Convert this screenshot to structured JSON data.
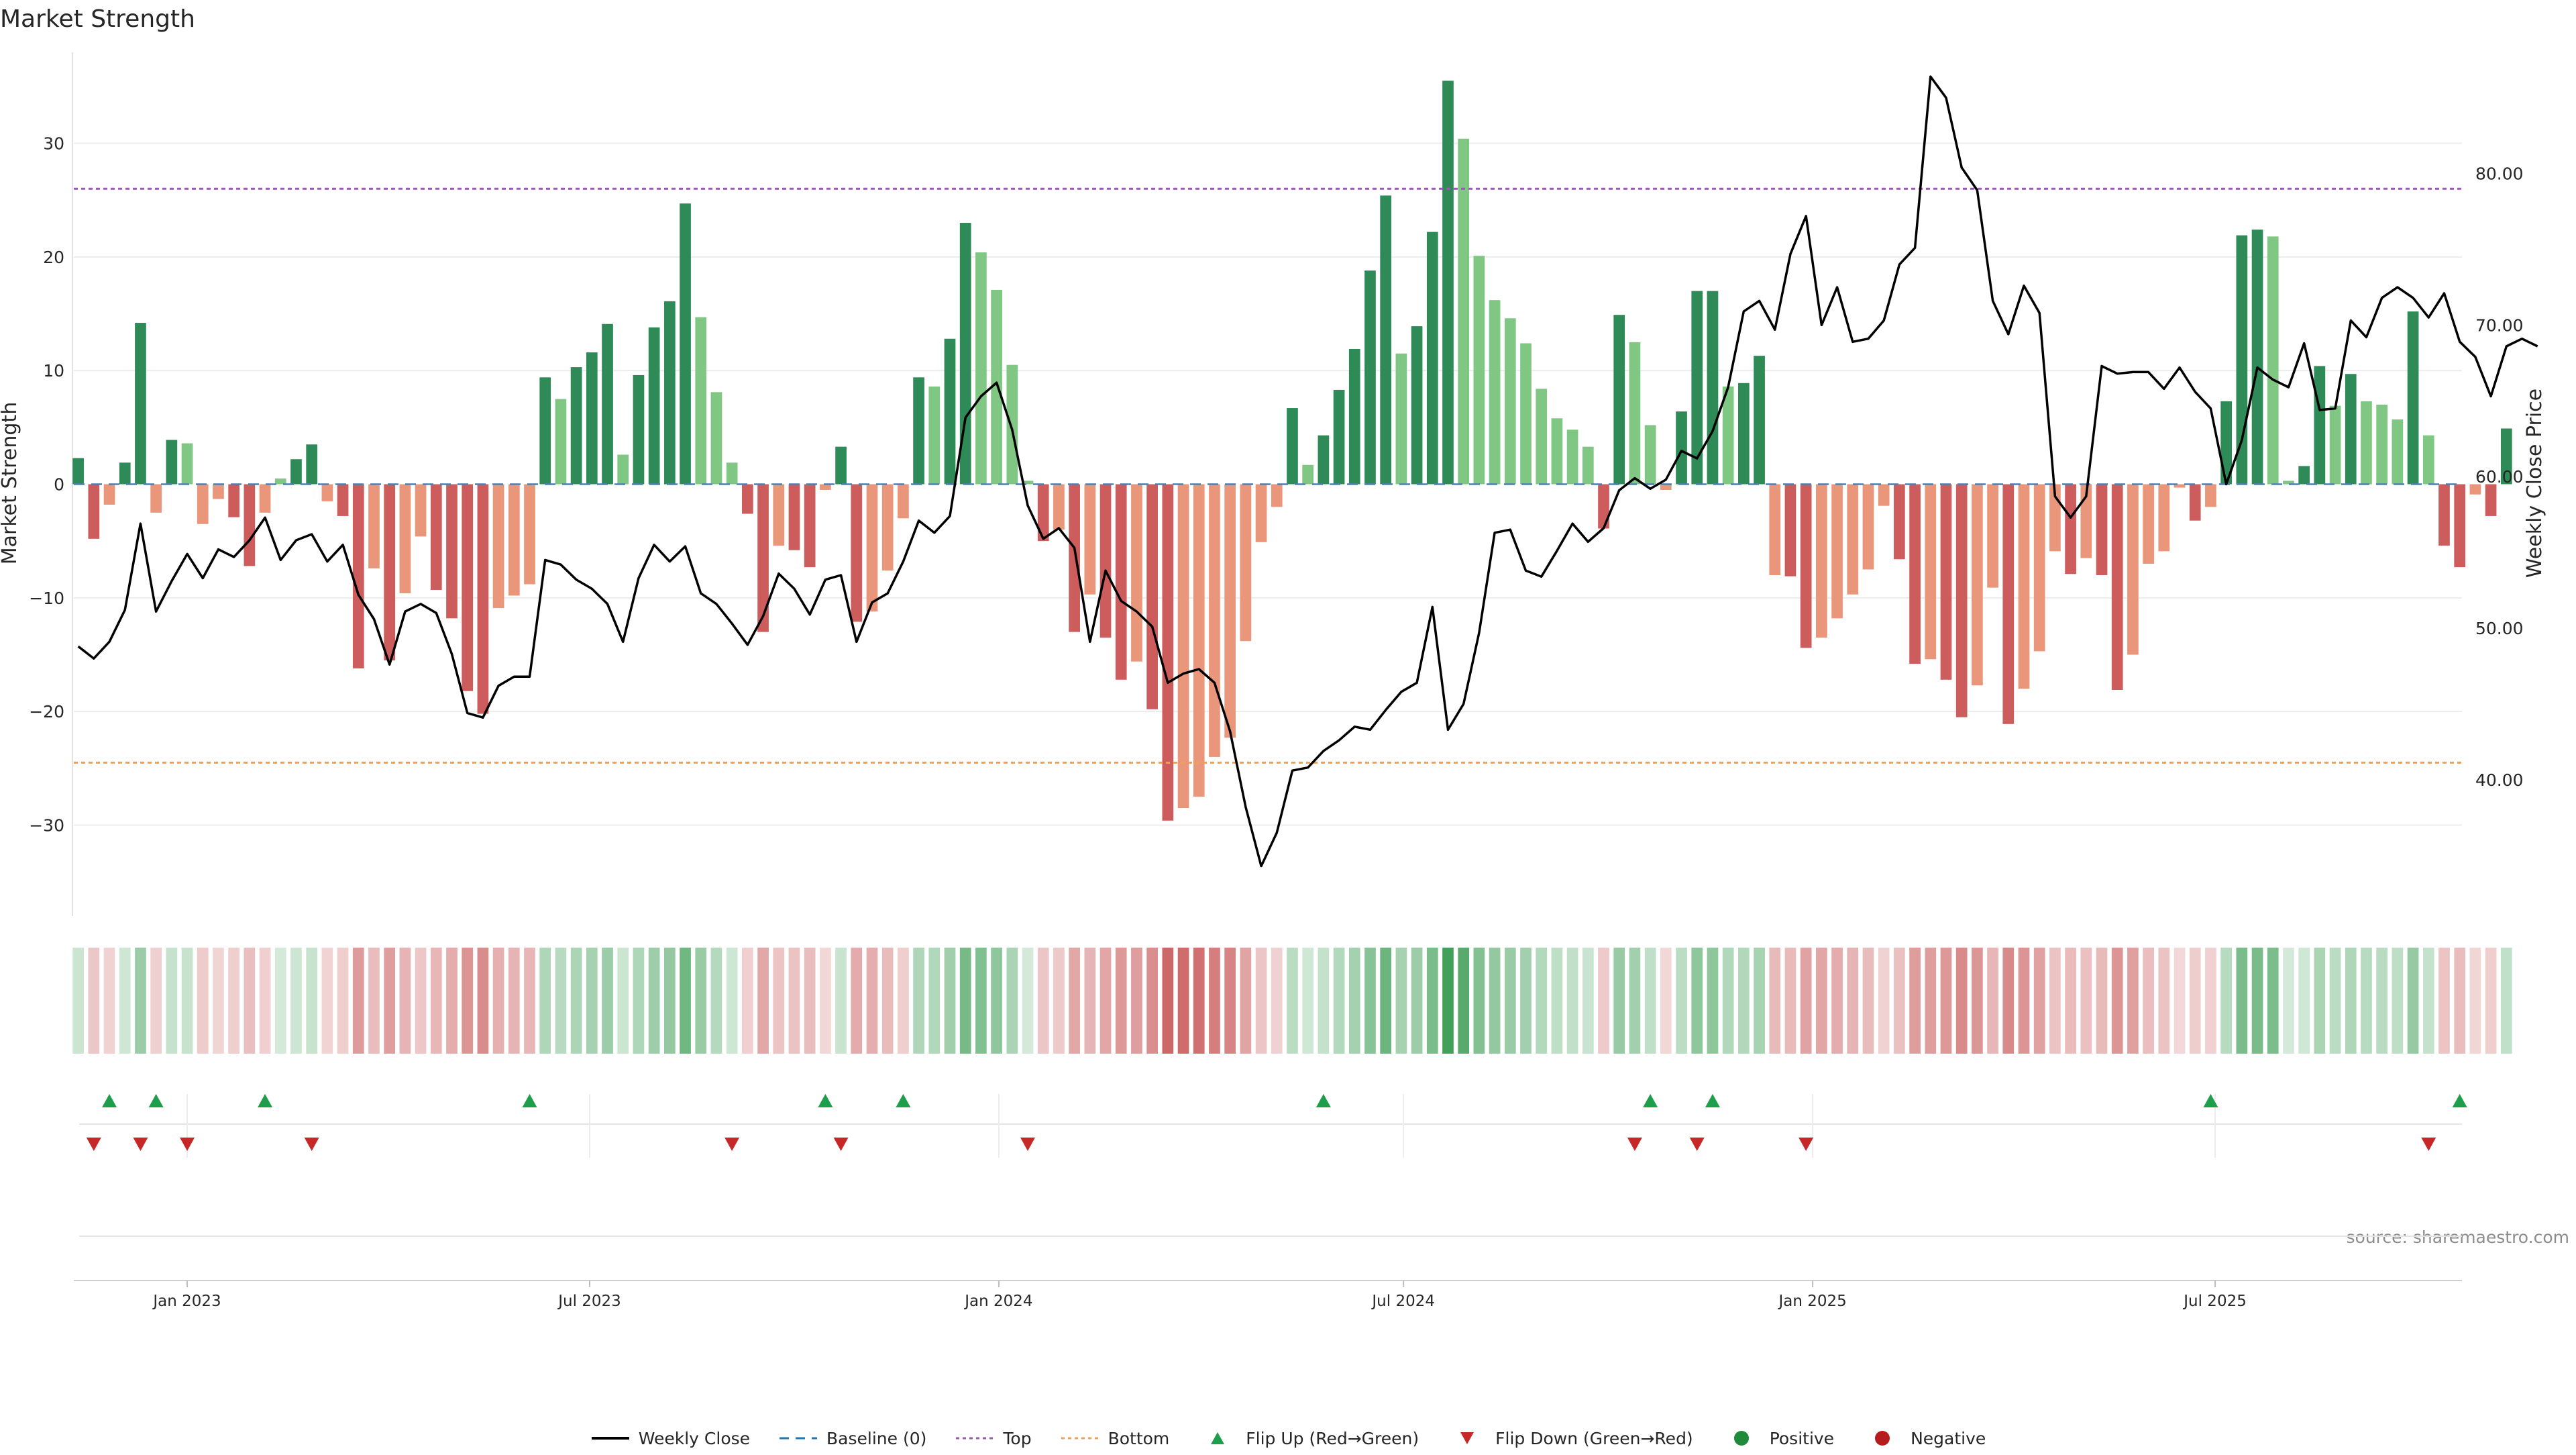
{
  "chart_data": {
    "type": "bar",
    "title": "Market Strength",
    "ylabel": "Market Strength",
    "y2label": "Weekly Close Price",
    "ylim": [
      -38,
      38
    ],
    "y2lim": [
      31,
      88
    ],
    "yticks": [
      -30,
      -20,
      -10,
      0,
      10,
      20,
      30
    ],
    "y2ticks": [
      "40.00",
      "50.00",
      "60.00",
      "70.00",
      "80.00"
    ],
    "top_level": 26,
    "bottom_level": -24.5,
    "x_start": "2022-11-11",
    "x_end": "2025-10-20",
    "xticks": [
      {
        "label": "Jan 2023",
        "date": "2023-01-01"
      },
      {
        "label": "Jul 2023",
        "date": "2023-07-01"
      },
      {
        "label": "Jan 2024",
        "date": "2024-01-01"
      },
      {
        "label": "Jul 2024",
        "date": "2024-07-01"
      },
      {
        "label": "Jan 2025",
        "date": "2025-01-01"
      },
      {
        "label": "Jul 2025",
        "date": "2025-07-01"
      }
    ],
    "first_week": "2022-11-13",
    "week_days": 7,
    "strength": [
      2.3,
      -4.8,
      -1.8,
      1.9,
      14.2,
      -2.5,
      3.9,
      3.6,
      -3.5,
      -1.3,
      -2.9,
      -7.2,
      -2.5,
      0.5,
      2.2,
      3.5,
      -1.5,
      -2.8,
      -16.2,
      -7.4,
      -15.5,
      -9.6,
      -4.6,
      -9.3,
      -11.8,
      -18.2,
      -20.2,
      -10.9,
      -9.8,
      -8.8,
      9.4,
      7.5,
      10.3,
      11.6,
      14.1,
      2.6,
      9.6,
      13.8,
      16.1,
      24.7,
      14.7,
      8.1,
      1.9,
      -2.6,
      -13.0,
      -5.4,
      -5.8,
      -7.3,
      -0.5,
      3.3,
      -12.1,
      -11.2,
      -7.6,
      -3.0,
      9.4,
      8.6,
      12.8,
      23.0,
      20.4,
      17.1,
      10.5,
      0.3,
      -5.0,
      -4.0,
      -13.0,
      -9.7,
      -13.5,
      -17.2,
      -15.6,
      -19.8,
      -29.6,
      -28.5,
      -27.5,
      -24.0,
      -22.3,
      -13.8,
      -5.1,
      -2.0,
      6.7,
      1.7,
      4.3,
      8.3,
      11.9,
      18.8,
      25.4,
      11.5,
      13.9,
      22.2,
      35.5,
      30.4,
      20.1,
      16.2,
      14.6,
      12.4,
      8.4,
      5.8,
      4.8,
      3.3,
      -3.9,
      14.9,
      12.5,
      5.2,
      -0.5,
      6.4,
      17.0,
      17.0,
      8.6,
      8.9,
      11.3,
      -8.0,
      -8.1,
      -14.4,
      -13.5,
      -11.8,
      -9.7,
      -7.5,
      -1.9,
      -6.6,
      -15.8,
      -15.4,
      -17.2,
      -20.5,
      -17.7,
      -9.1,
      -21.1,
      -18.0,
      -14.7,
      -5.9,
      -7.9,
      -6.5,
      -8.0,
      -18.1,
      -15.0,
      -7.0,
      -5.9,
      -0.3,
      -3.2,
      -2.0,
      7.3,
      21.9,
      22.4,
      21.8,
      0.3,
      1.6,
      10.4,
      6.9,
      9.7,
      7.3,
      7.0,
      5.7,
      15.2,
      4.3,
      -5.4,
      -7.3,
      -0.9,
      -2.8,
      4.9
    ],
    "close": [
      48.8,
      48.0,
      49.1,
      51.2,
      56.9,
      51.1,
      53.1,
      54.9,
      53.3,
      55.2,
      54.7,
      55.8,
      57.3,
      54.5,
      55.8,
      56.2,
      54.4,
      55.5,
      52.2,
      50.6,
      47.6,
      51.1,
      51.6,
      51.0,
      48.3,
      44.4,
      44.1,
      46.2,
      46.8,
      46.8,
      54.5,
      54.2,
      53.2,
      52.6,
      51.6,
      49.1,
      53.3,
      55.5,
      54.4,
      55.4,
      52.3,
      51.6,
      50.3,
      48.9,
      50.8,
      53.6,
      52.6,
      50.9,
      53.2,
      53.5,
      49.1,
      51.7,
      52.3,
      54.4,
      57.1,
      56.3,
      57.4,
      63.9,
      65.3,
      66.2,
      63.1,
      58.1,
      55.9,
      56.6,
      55.3,
      49.1,
      53.8,
      51.8,
      51.1,
      50.1,
      46.4,
      47.0,
      47.3,
      46.4,
      43.2,
      38.2,
      34.3,
      36.5,
      40.6,
      40.8,
      41.9,
      42.6,
      43.5,
      43.3,
      44.6,
      45.8,
      46.4,
      51.4,
      43.3,
      45.0,
      49.7,
      56.3,
      56.5,
      53.8,
      53.4,
      55.1,
      56.9,
      55.7,
      56.6,
      59.1,
      59.9,
      59.2,
      59.8,
      61.7,
      61.2,
      63.0,
      65.9,
      70.9,
      71.6,
      69.7,
      74.7,
      77.2,
      70.0,
      72.5,
      68.9,
      69.1,
      70.3,
      74.0,
      75.1,
      86.4,
      85.0,
      80.4,
      78.9,
      71.6,
      69.4,
      72.6,
      70.8,
      58.7,
      57.3,
      58.7,
      67.3,
      66.8,
      66.9,
      66.9,
      65.8,
      67.2,
      65.6,
      64.5,
      59.5,
      62.4,
      67.2,
      66.4,
      65.9,
      68.8,
      64.4,
      64.5,
      70.3,
      69.2,
      71.8,
      72.5,
      71.8,
      70.5,
      72.1,
      68.9,
      67.9,
      65.3,
      68.6,
      69.1,
      68.6
    ],
    "flip_up": [
      "2022-11-27",
      "2022-12-18",
      "2023-02-05",
      "2023-06-04",
      "2023-10-15",
      "2023-11-19",
      "2024-05-26",
      "2024-10-20",
      "2024-11-17",
      "2025-06-29",
      "2025-10-19"
    ],
    "flip_down": [
      "2022-11-20",
      "2022-12-11",
      "2023-01-01",
      "2023-02-26",
      "2023-09-03",
      "2023-10-22",
      "2024-01-14",
      "2024-10-13",
      "2024-11-10",
      "2024-12-29",
      "2025-10-05"
    ],
    "legend": [
      {
        "label": "Weekly Close",
        "symbol": "line",
        "color": "#000000"
      },
      {
        "label": "Baseline (0)",
        "symbol": "dash",
        "color": "#1f77b4"
      },
      {
        "label": "Top",
        "symbol": "dot",
        "color": "#9b59b6"
      },
      {
        "label": "Bottom",
        "symbol": "dot",
        "color": "#f0a050"
      },
      {
        "label": "Flip Up (Red→Green)",
        "symbol": "tri-up",
        "color": "#1e9e4a"
      },
      {
        "label": "Flip Down (Green→Red)",
        "symbol": "tri-down",
        "color": "#c62828"
      },
      {
        "label": "Positive",
        "symbol": "circle",
        "color": "#1e8a3a"
      },
      {
        "label": "Negative",
        "symbol": "circle",
        "color": "#b71c1c"
      }
    ],
    "colors": {
      "strong_pos": "#2e8b57",
      "weak_pos": "#81c784",
      "strong_neg": "#cd5c5c",
      "weak_neg": "#e9967a",
      "price_line": "#000000",
      "baseline": "#4f7fb0",
      "top": "#9b59b6",
      "bottom": "#f0a050"
    }
  },
  "source": "source: sharemaestro.com"
}
